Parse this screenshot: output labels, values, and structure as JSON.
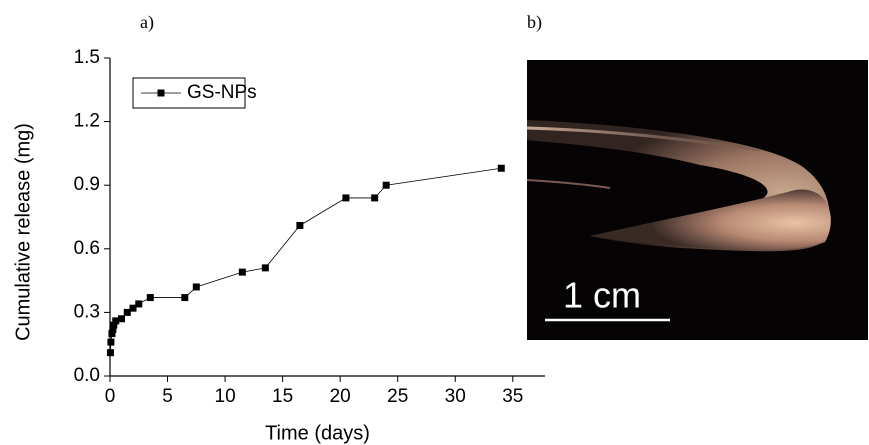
{
  "chart_data": {
    "type": "line",
    "xlabel": "Time (days)",
    "ylabel": "Cumulative release (mg)",
    "x": [
      0.04,
      0.08,
      0.17,
      0.25,
      0.33,
      0.5,
      1,
      1.5,
      2,
      2.5,
      3.5,
      6.5,
      7.5,
      11.5,
      13.5,
      16.5,
      20.5,
      23,
      24,
      34
    ],
    "series": [
      {
        "name": "GS-NPs",
        "color": "#000000",
        "values": [
          0.11,
          0.16,
          0.2,
          0.22,
          0.24,
          0.26,
          0.27,
          0.3,
          0.32,
          0.34,
          0.37,
          0.37,
          0.42,
          0.49,
          0.51,
          0.71,
          0.84,
          0.84,
          0.9,
          0.98
        ]
      }
    ],
    "xlim": [
      0,
      37.8
    ],
    "xticks": [
      0,
      5,
      10,
      15,
      20,
      25,
      30,
      35
    ],
    "ylim": [
      0,
      1.5
    ],
    "yticks": [
      {
        "value": 0,
        "label": "0.0"
      },
      0.3,
      0.6,
      0.9,
      1.2,
      1.5
    ],
    "legend": "upper left"
  },
  "figure": {
    "panel_a": "a)",
    "panel_b": "b)",
    "scale_bar": "1 cm"
  }
}
